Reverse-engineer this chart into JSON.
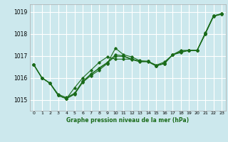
{
  "title": "Graphe pression niveau de la mer (hPa)",
  "background_color": "#cce8ed",
  "grid_color": "#ffffff",
  "line_color": "#1a6b1a",
  "xlim": [
    -0.5,
    23.5
  ],
  "ylim": [
    1014.5,
    1019.35
  ],
  "yticks": [
    1015,
    1016,
    1017,
    1018,
    1019
  ],
  "xticks": [
    0,
    1,
    2,
    3,
    4,
    5,
    6,
    7,
    8,
    9,
    10,
    11,
    12,
    13,
    14,
    15,
    16,
    17,
    18,
    19,
    20,
    21,
    22,
    23
  ],
  "series": [
    [
      1016.6,
      1016.0,
      1015.75,
      1015.25,
      1015.1,
      1015.3,
      1015.85,
      1016.15,
      1016.45,
      1016.7,
      1017.05,
      1017.0,
      1016.85,
      1016.75,
      1016.75,
      1016.55,
      1016.65,
      1017.05,
      1017.2,
      1017.25,
      1017.25,
      1018.0,
      1018.8,
      1018.9
    ],
    [
      1016.6,
      1016.0,
      1015.75,
      1015.2,
      1015.05,
      1015.55,
      1016.0,
      1016.35,
      1016.7,
      1016.95,
      1016.85,
      1016.85,
      1016.85,
      1016.75,
      1016.75,
      1016.55,
      1016.65,
      1017.05,
      1017.15,
      1017.25,
      1017.25,
      1018.0,
      1018.8,
      1018.9
    ],
    [
      1016.6,
      1016.0,
      1015.75,
      1015.2,
      1015.05,
      1015.25,
      1015.8,
      1016.1,
      1016.35,
      1016.65,
      1017.35,
      1017.05,
      1016.95,
      1016.78,
      1016.75,
      1016.58,
      1016.72,
      1017.05,
      1017.25,
      1017.25,
      1017.25,
      1018.05,
      1018.82,
      1018.92
    ],
    [
      1016.6,
      1016.0,
      1015.75,
      1015.2,
      1015.05,
      1015.28,
      1015.82,
      1016.18,
      1016.42,
      1016.68,
      1016.98,
      1016.98,
      1016.83,
      1016.73,
      1016.73,
      1016.53,
      1016.68,
      1017.05,
      1017.18,
      1017.25,
      1017.25,
      1018.02,
      1018.82,
      1018.92
    ]
  ]
}
